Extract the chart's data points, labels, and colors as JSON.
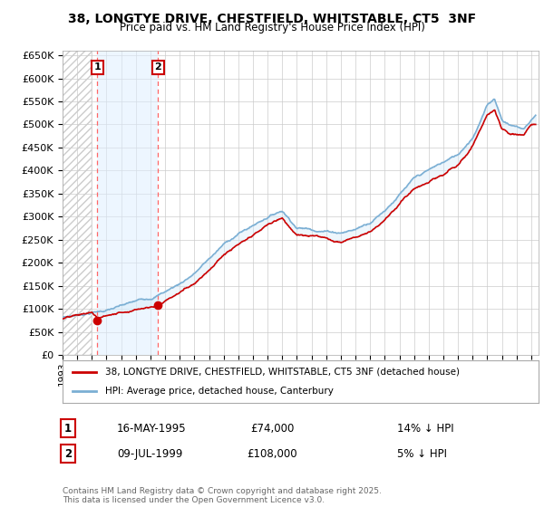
{
  "title": "38, LONGTYE DRIVE, CHESTFIELD, WHITSTABLE, CT5  3NF",
  "subtitle": "Price paid vs. HM Land Registry's House Price Index (HPI)",
  "ylim": [
    0,
    660000
  ],
  "yticks": [
    0,
    50000,
    100000,
    150000,
    200000,
    250000,
    300000,
    350000,
    400000,
    450000,
    500000,
    550000,
    600000,
    650000
  ],
  "ytick_labels": [
    "£0",
    "£50K",
    "£100K",
    "£150K",
    "£200K",
    "£250K",
    "£300K",
    "£350K",
    "£400K",
    "£450K",
    "£500K",
    "£550K",
    "£600K",
    "£650K"
  ],
  "hpi_color": "#7bafd4",
  "price_color": "#cc0000",
  "fill_color": "#d0e8f8",
  "dashed_line_color": "#ff6666",
  "hatch_color": "#dddddd",
  "marker1_date": 1995.37,
  "marker1_price": 74000,
  "marker1_label": "1",
  "marker1_date_str": "16-MAY-1995",
  "marker1_price_str": "£74,000",
  "marker1_hpi_str": "14% ↓ HPI",
  "marker2_date": 1999.52,
  "marker2_price": 108000,
  "marker2_label": "2",
  "marker2_date_str": "09-JUL-1999",
  "marker2_price_str": "£108,000",
  "marker2_hpi_str": "5% ↓ HPI",
  "legend_entry1": "38, LONGTYE DRIVE, CHESTFIELD, WHITSTABLE, CT5 3NF (detached house)",
  "legend_entry2": "HPI: Average price, detached house, Canterbury",
  "footer": "Contains HM Land Registry data © Crown copyright and database right 2025.\nThis data is licensed under the Open Government Licence v3.0.",
  "bg_color": "#ffffff",
  "xmin": 1993,
  "xmax": 2025.5,
  "hatch_end": 1995.0
}
